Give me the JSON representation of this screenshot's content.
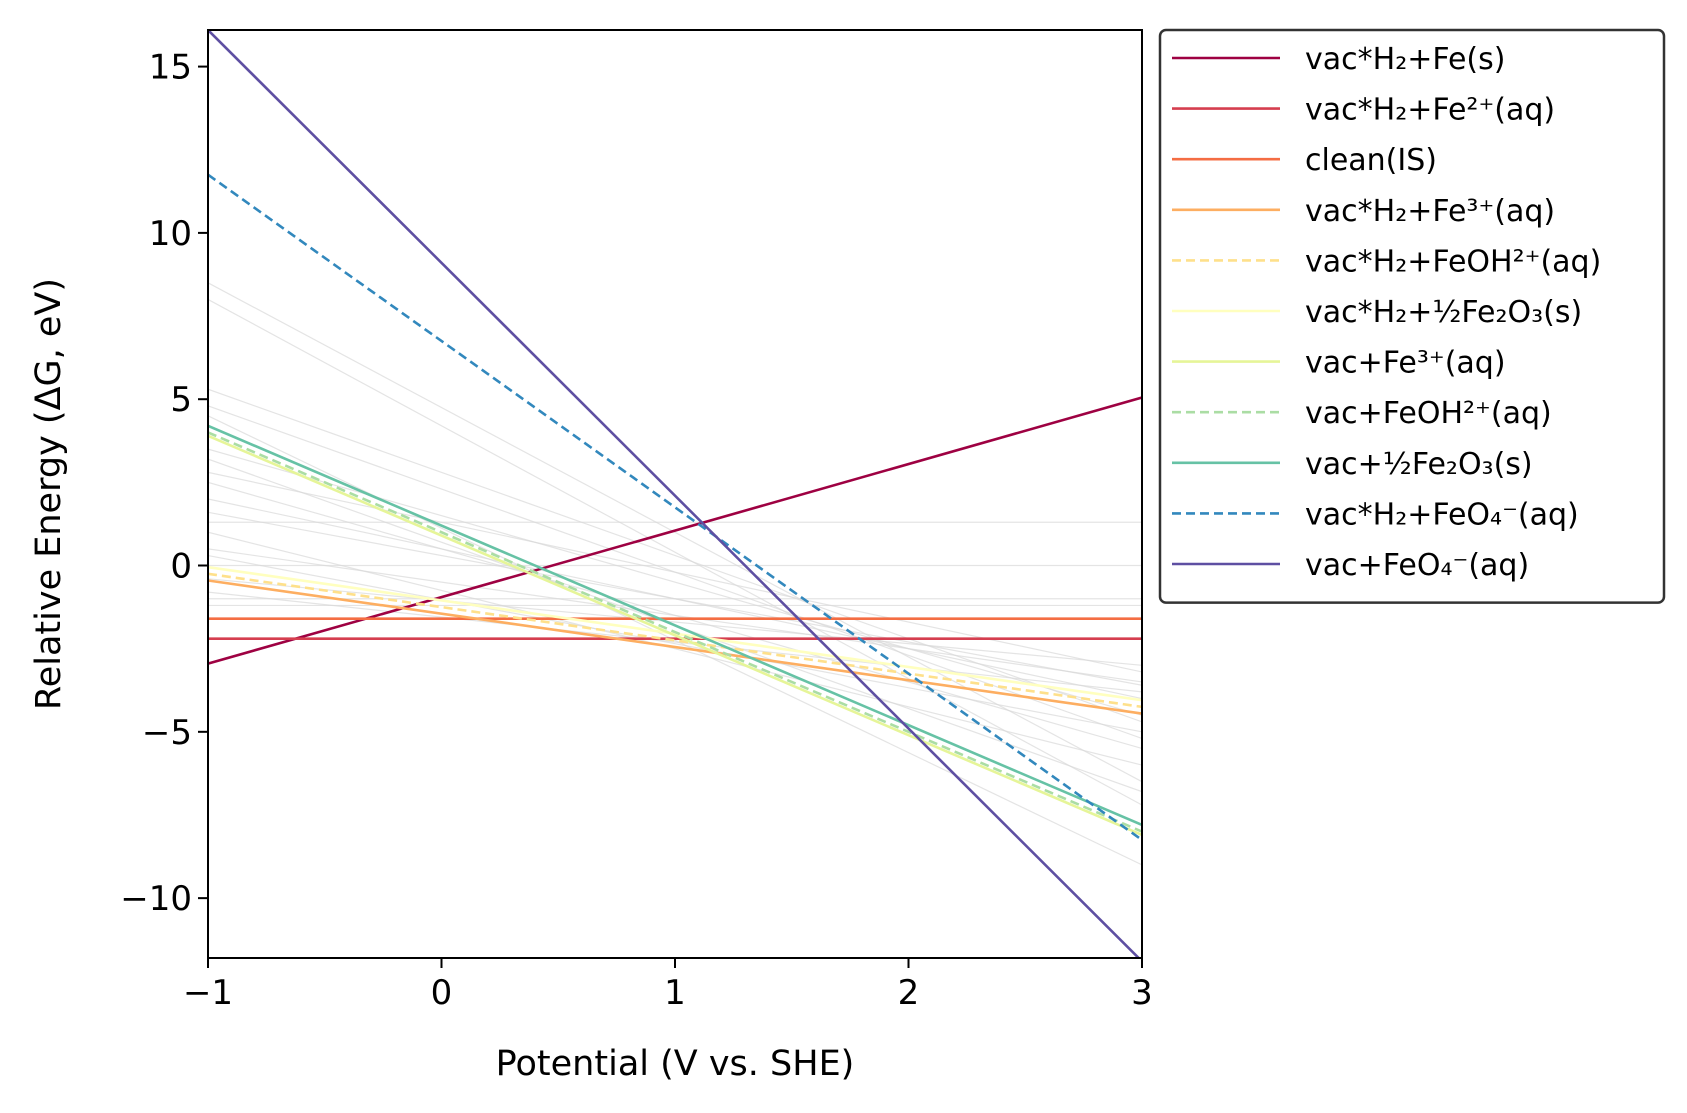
{
  "chart_data": {
    "type": "line",
    "title": "",
    "xlabel": "Potential (V vs. SHE)",
    "ylabel": "Relative Energy (ΔG, eV)",
    "xlim": [
      -1,
      3
    ],
    "ylim": [
      -11.8,
      16.1
    ],
    "x_ticks": [
      -1,
      0,
      1,
      2,
      3
    ],
    "x_tick_labels": [
      "−1",
      "0",
      "1",
      "2",
      "3"
    ],
    "y_ticks": [
      -10,
      -5,
      0,
      5,
      10,
      15
    ],
    "y_tick_labels": [
      "−10",
      "−5",
      "0",
      "5",
      "10",
      "15"
    ],
    "grid": false,
    "legend_position": "outside-right-top",
    "series": [
      {
        "name": "vac*H₂+Fe(s)",
        "color": "#9e0142",
        "dash": "solid",
        "x": [
          -1,
          3
        ],
        "y": [
          -2.95,
          5.05
        ]
      },
      {
        "name": "vac*H₂+Fe²⁺(aq)",
        "color": "#d53e4f",
        "dash": "solid",
        "x": [
          -1,
          3
        ],
        "y": [
          -2.2,
          -2.2
        ]
      },
      {
        "name": "clean(IS)",
        "color": "#f46d43",
        "dash": "solid",
        "x": [
          -1,
          3
        ],
        "y": [
          -1.6,
          -1.6
        ]
      },
      {
        "name": "vac*H₂+Fe³⁺(aq)",
        "color": "#fdae61",
        "dash": "solid",
        "x": [
          -1,
          3
        ],
        "y": [
          -0.45,
          -4.45
        ]
      },
      {
        "name": "vac*H₂+FeOH²⁺(aq)",
        "color": "#fee08b",
        "dash": "dashed",
        "x": [
          -1,
          3
        ],
        "y": [
          -0.25,
          -4.25
        ]
      },
      {
        "name": "vac*H₂+½Fe₂O₃(s)",
        "color": "#ffffbf",
        "dash": "solid",
        "x": [
          -1,
          3
        ],
        "y": [
          -0.05,
          -4.05
        ]
      },
      {
        "name": "vac+Fe³⁺(aq)",
        "color": "#e6f598",
        "dash": "solid",
        "x": [
          -1,
          3
        ],
        "y": [
          3.9,
          -8.1
        ]
      },
      {
        "name": "vac+FeOH²⁺(aq)",
        "color": "#abdda4",
        "dash": "dashed",
        "x": [
          -1,
          3
        ],
        "y": [
          4.0,
          -8.0
        ]
      },
      {
        "name": "vac+½Fe₂O₃(s)",
        "color": "#66c2a5",
        "dash": "solid",
        "x": [
          -1,
          3
        ],
        "y": [
          4.2,
          -7.8
        ]
      },
      {
        "name": "vac*H₂+FeO₄⁻(aq)",
        "color": "#3288bd",
        "dash": "dashed",
        "x": [
          -1,
          3
        ],
        "y": [
          11.75,
          -8.25
        ]
      },
      {
        "name": "vac+FeO₄⁻(aq)",
        "color": "#5e4fa2",
        "dash": "solid",
        "x": [
          -1,
          3
        ],
        "y": [
          16.1,
          -11.9
        ]
      }
    ],
    "background_lines": [
      {
        "y": [
          1.3,
          1.3
        ]
      },
      {
        "y": [
          0.0,
          0.0
        ]
      },
      {
        "y": [
          -1.0,
          -1.0
        ]
      },
      {
        "y": [
          -1.2,
          -1.2
        ]
      },
      {
        "y": [
          8.5,
          -6.5
        ]
      },
      {
        "y": [
          8.0,
          -7.2
        ]
      },
      {
        "y": [
          5.3,
          -4.7
        ]
      },
      {
        "y": [
          4.8,
          -5.2
        ]
      },
      {
        "y": [
          3.5,
          -4.5
        ]
      },
      {
        "y": [
          3.2,
          -6.8
        ]
      },
      {
        "y": [
          2.8,
          -3.2
        ]
      },
      {
        "y": [
          2.5,
          -5.5
        ]
      },
      {
        "y": [
          2.0,
          -4.0
        ]
      },
      {
        "y": [
          1.6,
          -3.6
        ]
      },
      {
        "y": [
          0.5,
          -3.5
        ]
      },
      {
        "y": [
          0.3,
          -5.0
        ]
      },
      {
        "y": [
          -0.4,
          -3.0
        ]
      },
      {
        "y": [
          -0.8,
          -3.8
        ]
      },
      {
        "y": [
          1.0,
          -6.0
        ]
      },
      {
        "y": [
          4.5,
          -9.0
        ]
      }
    ]
  }
}
